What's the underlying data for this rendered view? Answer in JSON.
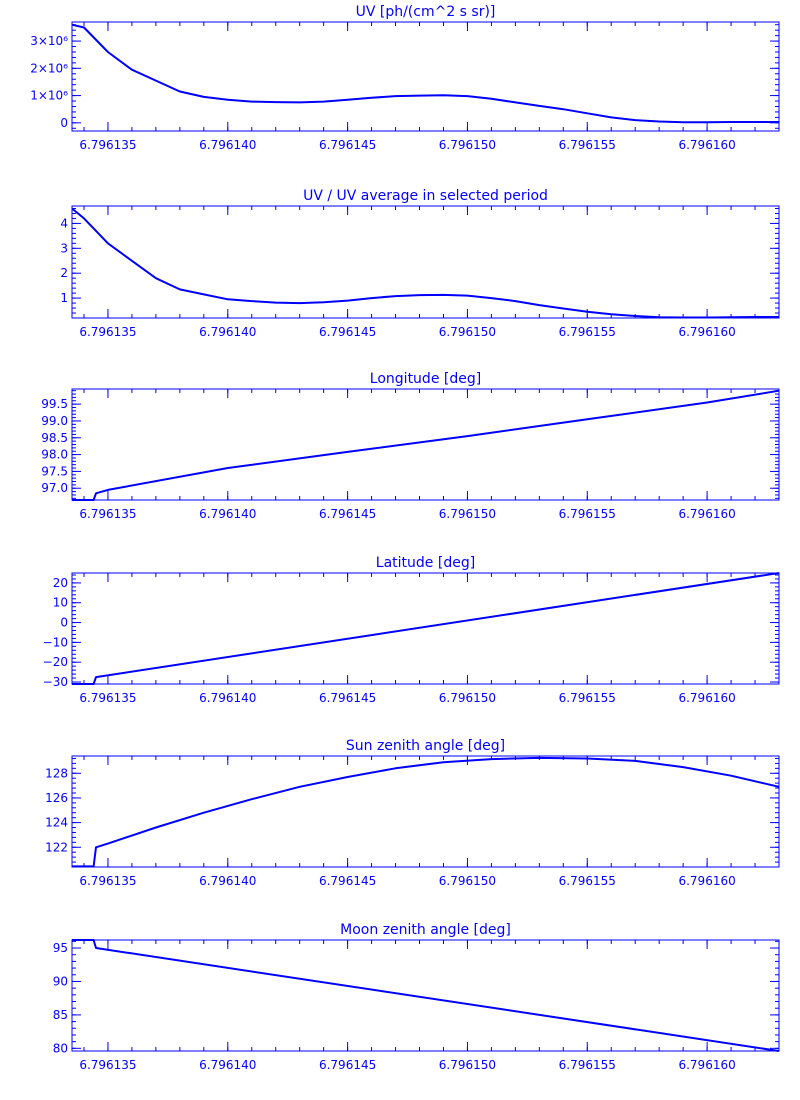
{
  "figure": {
    "color": "#0000ff",
    "background": "#ffffff"
  },
  "chart_data": [
    {
      "type": "line",
      "title": "UV [ph/(cm^2 s sr)]",
      "xlabel": "",
      "ylabel": "",
      "xlim": [
        6.7961335,
        6.796163
      ],
      "ylim": [
        -300000,
        3700000
      ],
      "xtick_values": [
        6.796135,
        6.79614,
        6.796145,
        6.79615,
        6.796155,
        6.79616
      ],
      "xtick_labels": [
        "6.796135",
        "6.796140",
        "6.796145",
        "6.796150",
        "6.796155",
        "6.796160"
      ],
      "ytick_values": [
        0,
        1000000,
        2000000,
        3000000
      ],
      "ytick_labels": [
        "0",
        "1×10⁶",
        "2×10⁶",
        "3×10⁶"
      ],
      "grid": false,
      "series": [
        {
          "x": [
            6.7961335,
            6.796134,
            6.796135,
            6.796136,
            6.796137,
            6.796138,
            6.796139,
            6.79614,
            6.796141,
            6.796142,
            6.796143,
            6.796144,
            6.796145,
            6.796146,
            6.796147,
            6.796148,
            6.796149,
            6.79615,
            6.796151,
            6.796152,
            6.796153,
            6.796154,
            6.796155,
            6.796156,
            6.796157,
            6.796158,
            6.796159,
            6.79616,
            6.796161,
            6.796162,
            6.796163
          ],
          "y": [
            3600000,
            3500000,
            2600000,
            1950000,
            1550000,
            1150000,
            950000,
            850000,
            780000,
            760000,
            750000,
            780000,
            850000,
            920000,
            980000,
            1000000,
            1010000,
            980000,
            880000,
            750000,
            620000,
            500000,
            350000,
            200000,
            100000,
            50000,
            20000,
            20000,
            30000,
            30000,
            30000
          ]
        }
      ]
    },
    {
      "type": "line",
      "title": "UV / UV average in selected period",
      "xlabel": "",
      "ylabel": "",
      "xlim": [
        6.7961335,
        6.796163
      ],
      "ylim": [
        0.2,
        4.7
      ],
      "xtick_values": [
        6.796135,
        6.79614,
        6.796145,
        6.79615,
        6.796155,
        6.79616
      ],
      "xtick_labels": [
        "6.796135",
        "6.796140",
        "6.796145",
        "6.796150",
        "6.796155",
        "6.796160"
      ],
      "ytick_values": [
        1,
        2,
        3,
        4
      ],
      "ytick_labels": [
        "1",
        "2",
        "3",
        "4"
      ],
      "grid": false,
      "series": [
        {
          "x": [
            6.7961335,
            6.796134,
            6.796135,
            6.796136,
            6.796137,
            6.796138,
            6.796139,
            6.79614,
            6.796141,
            6.796142,
            6.796143,
            6.796144,
            6.796145,
            6.796146,
            6.796147,
            6.796148,
            6.796149,
            6.79615,
            6.796151,
            6.796152,
            6.796153,
            6.796154,
            6.796155,
            6.796156,
            6.796157,
            6.796158,
            6.796159,
            6.79616,
            6.796161,
            6.796162,
            6.796163
          ],
          "y": [
            4.6,
            4.2,
            3.2,
            2.5,
            1.8,
            1.35,
            1.15,
            0.95,
            0.88,
            0.82,
            0.8,
            0.83,
            0.9,
            1.0,
            1.08,
            1.12,
            1.13,
            1.1,
            1.0,
            0.88,
            0.72,
            0.58,
            0.45,
            0.35,
            0.28,
            0.23,
            0.22,
            0.22,
            0.23,
            0.24,
            0.24
          ]
        }
      ]
    },
    {
      "type": "line",
      "title": "Longitude [deg]",
      "xlabel": "",
      "ylabel": "",
      "xlim": [
        6.7961335,
        6.796163
      ],
      "ylim": [
        96.65,
        99.95
      ],
      "xtick_values": [
        6.796135,
        6.79614,
        6.796145,
        6.79615,
        6.796155,
        6.79616
      ],
      "xtick_labels": [
        "6.796135",
        "6.796140",
        "6.796145",
        "6.796150",
        "6.796155",
        "6.796160"
      ],
      "ytick_values": [
        97.0,
        97.5,
        98.0,
        98.5,
        99.0,
        99.5
      ],
      "ytick_labels": [
        "97.0",
        "97.5",
        "98.0",
        "98.5",
        "99.0",
        "99.5"
      ],
      "grid": false,
      "series": [
        {
          "x": [
            6.7961335,
            6.7961344,
            6.7961345,
            6.796135,
            6.79614,
            6.796145,
            6.79615,
            6.796155,
            6.79616,
            6.796163
          ],
          "y": [
            96.65,
            96.65,
            96.85,
            96.95,
            97.6,
            98.08,
            98.55,
            99.05,
            99.55,
            99.9
          ]
        }
      ]
    },
    {
      "type": "line",
      "title": "Latitude [deg]",
      "xlabel": "",
      "ylabel": "",
      "xlim": [
        6.7961335,
        6.796163
      ],
      "ylim": [
        -31,
        25
      ],
      "xtick_values": [
        6.796135,
        6.79614,
        6.796145,
        6.79615,
        6.796155,
        6.79616
      ],
      "xtick_labels": [
        "6.796135",
        "6.796140",
        "6.796145",
        "6.796150",
        "6.796155",
        "6.796160"
      ],
      "ytick_values": [
        -30,
        -20,
        -10,
        0,
        10,
        20
      ],
      "ytick_labels": [
        "−30",
        "−20",
        "−10",
        "0",
        "10",
        "20"
      ],
      "grid": false,
      "series": [
        {
          "x": [
            6.7961335,
            6.7961344,
            6.7961345,
            6.796163
          ],
          "y": [
            -31,
            -31,
            -27.5,
            25
          ]
        }
      ]
    },
    {
      "type": "line",
      "title": "Sun zenith angle [deg]",
      "xlabel": "",
      "ylabel": "",
      "xlim": [
        6.7961335,
        6.796163
      ],
      "ylim": [
        120.4,
        129.4
      ],
      "xtick_values": [
        6.796135,
        6.79614,
        6.796145,
        6.79615,
        6.796155,
        6.79616
      ],
      "xtick_labels": [
        "6.796135",
        "6.796140",
        "6.796145",
        "6.796150",
        "6.796155",
        "6.796160"
      ],
      "ytick_values": [
        122,
        124,
        126,
        128
      ],
      "ytick_labels": [
        "122",
        "124",
        "126",
        "128"
      ],
      "grid": false,
      "series": [
        {
          "x": [
            6.7961335,
            6.7961344,
            6.7961345,
            6.796135,
            6.796137,
            6.796139,
            6.796141,
            6.796143,
            6.796145,
            6.796147,
            6.796149,
            6.796151,
            6.796153,
            6.796155,
            6.796157,
            6.796159,
            6.796161,
            6.796163
          ],
          "y": [
            120.45,
            120.45,
            122.0,
            122.3,
            123.6,
            124.8,
            125.9,
            126.9,
            127.7,
            128.4,
            128.9,
            129.15,
            129.25,
            129.2,
            129.0,
            128.5,
            127.8,
            126.9
          ]
        }
      ]
    },
    {
      "type": "line",
      "title": "Moon zenith angle [deg]",
      "xlabel": "",
      "ylabel": "",
      "xlim": [
        6.7961335,
        6.796163
      ],
      "ylim": [
        79.6,
        96.2
      ],
      "xtick_values": [
        6.796135,
        6.79614,
        6.796145,
        6.79615,
        6.796155,
        6.79616
      ],
      "xtick_labels": [
        "6.796135",
        "6.796140",
        "6.796145",
        "6.796150",
        "6.796155",
        "6.796160"
      ],
      "ytick_values": [
        80,
        85,
        90,
        95
      ],
      "ytick_labels": [
        "80",
        "85",
        "90",
        "95"
      ],
      "grid": false,
      "series": [
        {
          "x": [
            6.7961335,
            6.7961344,
            6.7961345,
            6.796163
          ],
          "y": [
            96.2,
            96.2,
            95.0,
            79.6
          ]
        }
      ]
    }
  ]
}
